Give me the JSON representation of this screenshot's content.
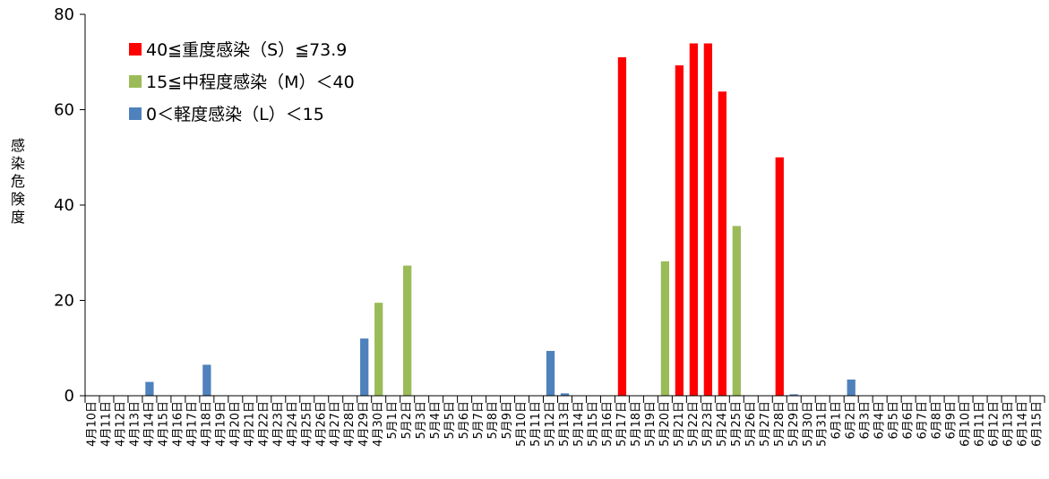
{
  "chart_data": {
    "type": "bar",
    "ylabel": "感染危険度",
    "ylim": [
      0,
      80
    ],
    "yticks": [
      0,
      20,
      40,
      60,
      80
    ],
    "grid": false,
    "legend_position": "top-left",
    "categories": [
      "4月10日",
      "4月11日",
      "4月12日",
      "4月13日",
      "4月14日",
      "4月15日",
      "4月16日",
      "4月17日",
      "4月18日",
      "4月19日",
      "4月20日",
      "4月21日",
      "4月22日",
      "4月23日",
      "4月24日",
      "4月25日",
      "4月26日",
      "4月27日",
      "4月28日",
      "4月29日",
      "4月30日",
      "5月1日",
      "5月2日",
      "5月3日",
      "5月4日",
      "5月5日",
      "5月6日",
      "5月7日",
      "5月8日",
      "5月9日",
      "5月10日",
      "5月11日",
      "5月12日",
      "5月13日",
      "5月14日",
      "5月15日",
      "5月16日",
      "5月17日",
      "5月18日",
      "5月19日",
      "5月20日",
      "5月21日",
      "5月22日",
      "5月23日",
      "5月24日",
      "5月25日",
      "5月26日",
      "5月27日",
      "5月28日",
      "5月29日",
      "5月30日",
      "5月31日",
      "6月1日",
      "6月2日",
      "6月3日",
      "6月4日",
      "6月5日",
      "6月6日",
      "6月7日",
      "6月8日",
      "6月9日",
      "6月10日",
      "6月11日",
      "6月12日",
      "6月13日",
      "6月14日",
      "6月15日"
    ],
    "series": [
      {
        "name": "40≦重度感染（S）≦73.9",
        "color": "#ff0000",
        "values": [
          0,
          0,
          0,
          0,
          0,
          0,
          0,
          0,
          0,
          0,
          0,
          0,
          0,
          0,
          0,
          0,
          0,
          0,
          0,
          0,
          0,
          0,
          0,
          0,
          0,
          0,
          0,
          0,
          0,
          0,
          0,
          0,
          0,
          0,
          0,
          0,
          0,
          71,
          0,
          0,
          0,
          69.3,
          73.9,
          73.9,
          63.8,
          0,
          0,
          0,
          50,
          0,
          0,
          0,
          0,
          0,
          0,
          0,
          0,
          0,
          0,
          0,
          0,
          0,
          0,
          0,
          0,
          0,
          0
        ]
      },
      {
        "name": "15≦中程度感染（M）＜40",
        "color": "#9bbb59",
        "values": [
          0,
          0,
          0,
          0,
          0,
          0,
          0,
          0,
          0,
          0,
          0,
          0,
          0,
          0,
          0,
          0,
          0,
          0,
          0,
          0,
          19.5,
          0,
          27.3,
          0,
          0,
          0,
          0,
          0,
          0,
          0,
          0,
          0,
          0,
          0,
          0,
          0,
          0,
          0,
          0,
          0,
          28.2,
          0,
          0,
          0,
          0,
          35.6,
          0,
          0,
          0,
          0,
          0,
          0,
          0,
          0,
          0,
          0,
          0,
          0,
          0,
          0,
          0,
          0,
          0,
          0,
          0,
          0,
          0
        ]
      },
      {
        "name": "0＜軽度感染（L）＜15",
        "color": "#4f81bd",
        "values": [
          0,
          0,
          0,
          0,
          2.9,
          0,
          0,
          0,
          6.5,
          0,
          0,
          0,
          0,
          0,
          0,
          0,
          0,
          0,
          0,
          12,
          0,
          0,
          0,
          0,
          0,
          0,
          0,
          0,
          0,
          0,
          0,
          0,
          9.4,
          0.5,
          0,
          0,
          0,
          0,
          0,
          0,
          0,
          0,
          0,
          0,
          0,
          0,
          0,
          0,
          0,
          0.3,
          0,
          0,
          0,
          3.4,
          0,
          0,
          0,
          0,
          0,
          0,
          0,
          0,
          0,
          0,
          0,
          0,
          0
        ]
      }
    ]
  }
}
